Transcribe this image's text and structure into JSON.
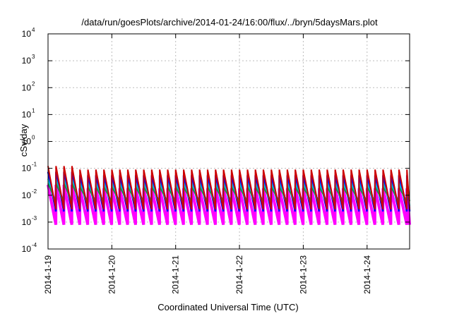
{
  "chart_data": {
    "type": "line",
    "title": "/data/run/goesPlots/archive/2014-01-24/16:00/flux/../bryn/5daysMars.plot",
    "xlabel": "Coordinated Universal Time (UTC)",
    "ylabel": "cSv/day",
    "y_scale": "log",
    "ylim": [
      0.0001,
      10000
    ],
    "y_ticks": [
      {
        "base": "10",
        "exp": "-4"
      },
      {
        "base": "10",
        "exp": "-3"
      },
      {
        "base": "10",
        "exp": "-2"
      },
      {
        "base": "10",
        "exp": "-1"
      },
      {
        "base": "10",
        "exp": "0"
      },
      {
        "base": "10",
        "exp": "1"
      },
      {
        "base": "10",
        "exp": "2"
      },
      {
        "base": "10",
        "exp": "3"
      },
      {
        "base": "10",
        "exp": "4"
      }
    ],
    "xlim": [
      "2014-01-19 00:00",
      "2014-01-24 16:00"
    ],
    "x_ticks": [
      "2014-1-19",
      "2014-1-20",
      "2014-1-21",
      "2014-1-22",
      "2014-1-23",
      "2014-1-24"
    ],
    "grid": true,
    "legend": "none",
    "sawtooth_period_hours": 3,
    "series": [
      {
        "color": "#ff00ff",
        "peak": 0.018,
        "trough": 0.0008
      },
      {
        "color": "#0000ff",
        "peak": 0.055,
        "trough": 0.0025
      },
      {
        "color": "#00bcd4",
        "peak": 0.03,
        "trough": 0.004
      },
      {
        "color": "#1e8c4a",
        "peak": 0.02,
        "trough": 0.006
      },
      {
        "color": "#cc0000",
        "peak": 0.09,
        "trough": 0.003
      }
    ]
  }
}
